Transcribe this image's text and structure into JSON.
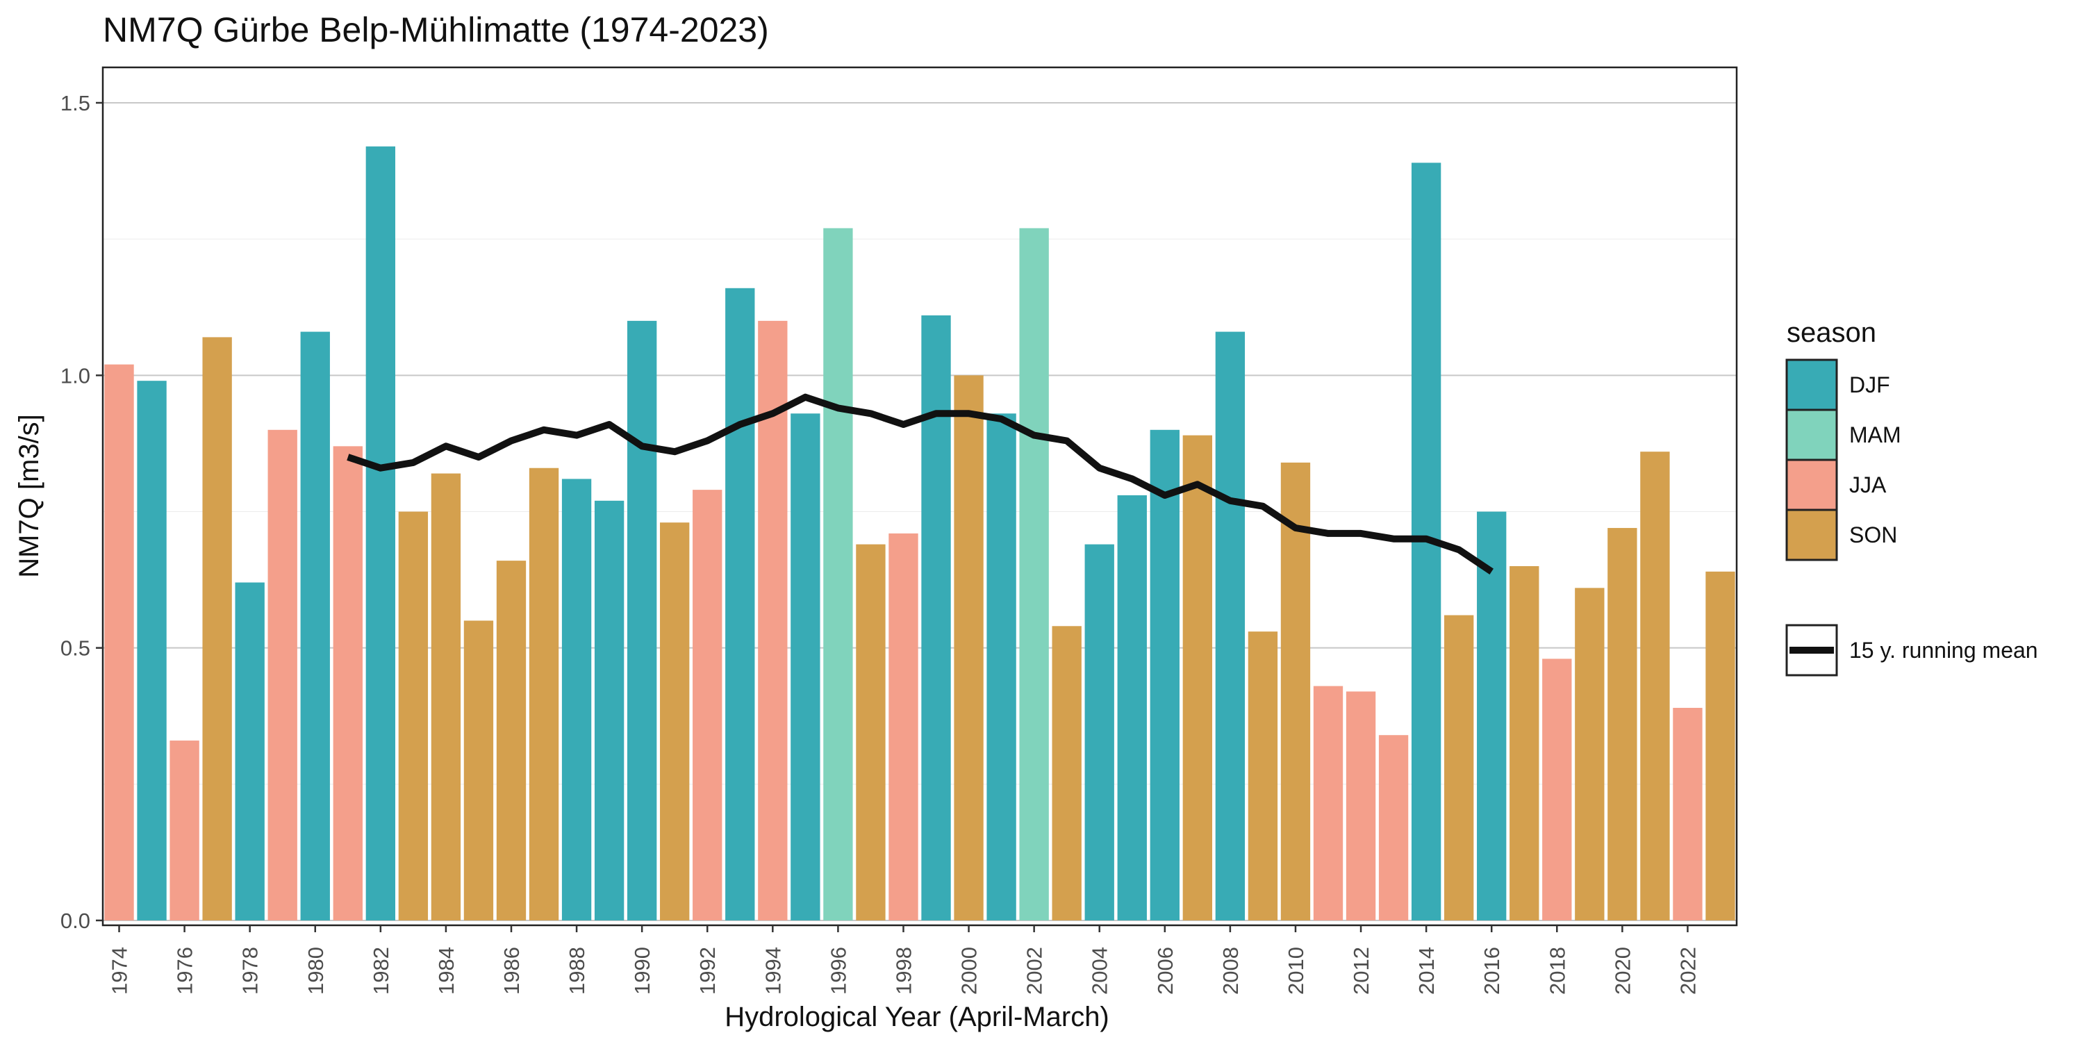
{
  "chart_data": {
    "type": "bar",
    "title": "NM7Q Gürbe Belp-Mühlimatte (1974-2023)",
    "xlabel": "Hydrological Year (April-March)",
    "ylabel": "NM7Q [m3/s]",
    "ylim": [
      0,
      1.5
    ],
    "y_ticks": [
      "0.0",
      "0.5",
      "1.0",
      "1.5"
    ],
    "grid": "horizontal major gridlines",
    "legend": {
      "title": "season",
      "placement": "right",
      "line_label": "15 y. running mean"
    },
    "seasons": [
      {
        "name": "DJF",
        "color": "#38abb5"
      },
      {
        "name": "MAM",
        "color": "#80d3bc"
      },
      {
        "name": "JJA",
        "color": "#f49f8b"
      },
      {
        "name": "SON",
        "color": "#d4a04e"
      }
    ],
    "years": [
      1974,
      1975,
      1976,
      1977,
      1978,
      1979,
      1980,
      1981,
      1982,
      1983,
      1984,
      1985,
      1986,
      1987,
      1988,
      1989,
      1990,
      1991,
      1992,
      1993,
      1994,
      1995,
      1996,
      1997,
      1998,
      1999,
      2000,
      2001,
      2002,
      2003,
      2004,
      2005,
      2006,
      2007,
      2008,
      2009,
      2010,
      2011,
      2012,
      2013,
      2014,
      2015,
      2016,
      2017,
      2018,
      2019,
      2020,
      2021,
      2022,
      2023
    ],
    "x_tick_labels": [
      "1974",
      "1976",
      "1978",
      "1980",
      "1982",
      "1984",
      "1986",
      "1988",
      "1990",
      "1992",
      "1994",
      "1996",
      "1998",
      "2000",
      "2002",
      "2004",
      "2006",
      "2008",
      "2010",
      "2012",
      "2014",
      "2016",
      "2018",
      "2020",
      "2022"
    ],
    "values": [
      1.02,
      0.99,
      0.33,
      1.07,
      0.62,
      0.9,
      1.08,
      0.87,
      1.42,
      0.75,
      0.82,
      0.55,
      0.66,
      0.83,
      0.81,
      0.77,
      1.1,
      0.73,
      0.79,
      1.16,
      1.1,
      0.93,
      1.27,
      0.69,
      0.71,
      1.11,
      1.0,
      0.93,
      1.27,
      0.54,
      0.69,
      0.78,
      0.9,
      0.89,
      1.08,
      0.53,
      0.84,
      0.43,
      0.42,
      0.34,
      1.39,
      0.56,
      0.75,
      0.65,
      0.48,
      0.61,
      0.72,
      0.86,
      0.39,
      0.64
    ],
    "season_of_year": [
      "JJA",
      "DJF",
      "JJA",
      "SON",
      "DJF",
      "JJA",
      "DJF",
      "JJA",
      "DJF",
      "SON",
      "SON",
      "SON",
      "SON",
      "SON",
      "DJF",
      "DJF",
      "DJF",
      "SON",
      "JJA",
      "DJF",
      "JJA",
      "DJF",
      "MAM",
      "SON",
      "JJA",
      "DJF",
      "SON",
      "DJF",
      "MAM",
      "SON",
      "DJF",
      "DJF",
      "DJF",
      "SON",
      "DJF",
      "SON",
      "SON",
      "JJA",
      "JJA",
      "JJA",
      "DJF",
      "SON",
      "DJF",
      "SON",
      "JJA",
      "SON",
      "SON",
      "SON",
      "JJA",
      "SON"
    ],
    "running_mean": {
      "name": "15 y. running mean",
      "x": [
        1981,
        1982,
        1983,
        1984,
        1985,
        1986,
        1987,
        1988,
        1989,
        1990,
        1991,
        1992,
        1993,
        1994,
        1995,
        1996,
        1997,
        1998,
        1999,
        2000,
        2001,
        2002,
        2003,
        2004,
        2005,
        2006,
        2007,
        2008,
        2009,
        2010,
        2011,
        2012,
        2013,
        2014,
        2015,
        2016
      ],
      "y": [
        0.85,
        0.83,
        0.84,
        0.87,
        0.85,
        0.88,
        0.9,
        0.89,
        0.91,
        0.87,
        0.86,
        0.88,
        0.91,
        0.93,
        0.96,
        0.94,
        0.93,
        0.91,
        0.93,
        0.93,
        0.92,
        0.89,
        0.88,
        0.83,
        0.81,
        0.78,
        0.8,
        0.77,
        0.76,
        0.72,
        0.71,
        0.71,
        0.7,
        0.7,
        0.68,
        0.64
      ]
    }
  }
}
